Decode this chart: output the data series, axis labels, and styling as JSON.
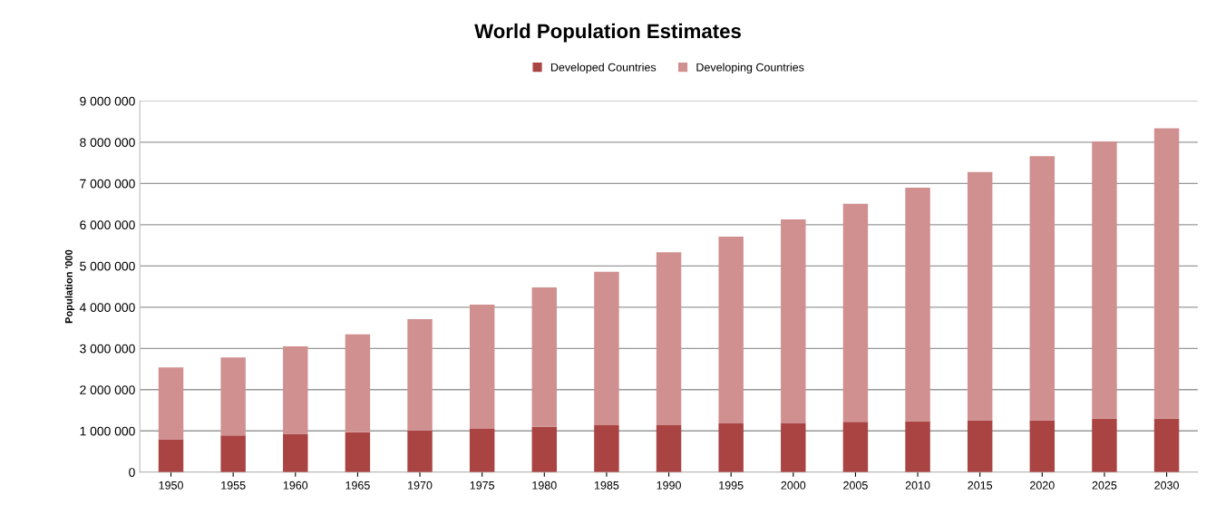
{
  "chart_data": {
    "type": "bar",
    "stacked": true,
    "title": "World Population Estimates",
    "ylabel": "Population '000",
    "categories": [
      "1950",
      "1955",
      "1960",
      "1965",
      "1970",
      "1975",
      "1980",
      "1985",
      "1990",
      "1995",
      "2000",
      "2005",
      "2010",
      "2015",
      "2020",
      "2025",
      "2030"
    ],
    "series": [
      {
        "name": "Developed Countries",
        "color": "#a94442",
        "values": [
          800000,
          890000,
          930000,
          970000,
          1010000,
          1050000,
          1100000,
          1140000,
          1140000,
          1180000,
          1180000,
          1220000,
          1240000,
          1260000,
          1260000,
          1300000,
          1300000
        ]
      },
      {
        "name": "Developing Countries",
        "color": "#d09090",
        "values": [
          1740000,
          1890000,
          2120000,
          2370000,
          2700000,
          3010000,
          3380000,
          3720000,
          4190000,
          4530000,
          4950000,
          5290000,
          5660000,
          6020000,
          6400000,
          6720000,
          7040000
        ]
      }
    ],
    "ylim": [
      0,
      9000000
    ],
    "yticks": [
      {
        "value": 0,
        "label": "0"
      },
      {
        "value": 1000000,
        "label": "1 000 000"
      },
      {
        "value": 2000000,
        "label": "2 000 000"
      },
      {
        "value": 3000000,
        "label": "3 000 000"
      },
      {
        "value": 4000000,
        "label": "4 000 000"
      },
      {
        "value": 5000000,
        "label": "5 000 000"
      },
      {
        "value": 6000000,
        "label": "6 000 000"
      },
      {
        "value": 7000000,
        "label": "7 000 000"
      },
      {
        "value": 8000000,
        "label": "8 000 000"
      },
      {
        "value": 9000000,
        "label": "9 000 000"
      }
    ],
    "grid": "y",
    "legend": "top"
  }
}
